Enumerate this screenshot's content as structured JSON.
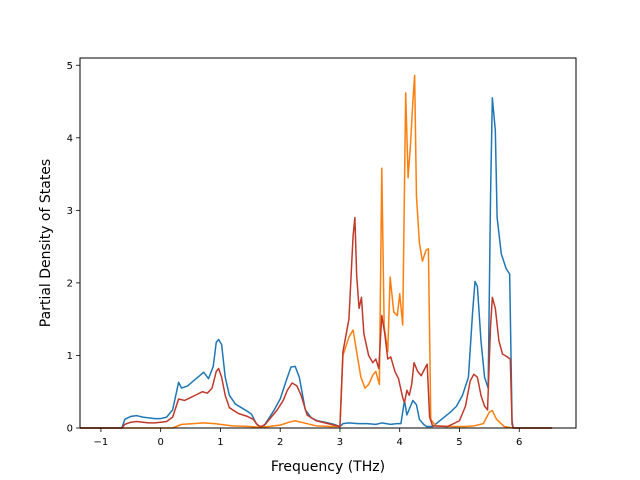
{
  "chart_data": {
    "type": "line",
    "title": "",
    "xlabel": "Frequency (THz)",
    "ylabel": "Partial Density of States",
    "xlim": [
      -1.35,
      6.95
    ],
    "ylim": [
      0,
      5.1
    ],
    "x_ticks": [
      -1,
      0,
      1,
      2,
      3,
      4,
      5,
      6
    ],
    "y_ticks": [
      0,
      1,
      2,
      3,
      4,
      5
    ],
    "grid": false,
    "legend": "none",
    "series": [
      {
        "color": "#1f77b4",
        "points": [
          [
            -1.35,
            0
          ],
          [
            -0.65,
            0
          ],
          [
            -0.6,
            0.12
          ],
          [
            -0.5,
            0.16
          ],
          [
            -0.4,
            0.17
          ],
          [
            -0.3,
            0.15
          ],
          [
            -0.2,
            0.14
          ],
          [
            -0.1,
            0.13
          ],
          [
            0,
            0.13
          ],
          [
            0.1,
            0.15
          ],
          [
            0.2,
            0.25
          ],
          [
            0.3,
            0.63
          ],
          [
            0.35,
            0.55
          ],
          [
            0.45,
            0.58
          ],
          [
            0.55,
            0.65
          ],
          [
            0.65,
            0.72
          ],
          [
            0.72,
            0.77
          ],
          [
            0.8,
            0.68
          ],
          [
            0.88,
            0.85
          ],
          [
            0.93,
            1.18
          ],
          [
            0.97,
            1.22
          ],
          [
            1.02,
            1.15
          ],
          [
            1.08,
            0.7
          ],
          [
            1.15,
            0.45
          ],
          [
            1.25,
            0.33
          ],
          [
            1.35,
            0.28
          ],
          [
            1.45,
            0.23
          ],
          [
            1.52,
            0.19
          ],
          [
            1.6,
            0.06
          ],
          [
            1.66,
            0.02
          ],
          [
            1.72,
            0.02
          ],
          [
            1.8,
            0.12
          ],
          [
            1.9,
            0.25
          ],
          [
            2.0,
            0.4
          ],
          [
            2.1,
            0.65
          ],
          [
            2.18,
            0.84
          ],
          [
            2.25,
            0.85
          ],
          [
            2.32,
            0.7
          ],
          [
            2.42,
            0.25
          ],
          [
            2.52,
            0.14
          ],
          [
            2.62,
            0.1
          ],
          [
            2.75,
            0.08
          ],
          [
            2.9,
            0.05
          ],
          [
            3.0,
            0.02
          ],
          [
            3.05,
            0.06
          ],
          [
            3.15,
            0.07
          ],
          [
            3.3,
            0.06
          ],
          [
            3.45,
            0.06
          ],
          [
            3.6,
            0.05
          ],
          [
            3.7,
            0.07
          ],
          [
            3.85,
            0.05
          ],
          [
            3.95,
            0.06
          ],
          [
            4.02,
            0.06
          ],
          [
            4.08,
            0.38
          ],
          [
            4.12,
            0.18
          ],
          [
            4.18,
            0.3
          ],
          [
            4.22,
            0.38
          ],
          [
            4.28,
            0.32
          ],
          [
            4.33,
            0.12
          ],
          [
            4.4,
            0.05
          ],
          [
            4.45,
            0.02
          ],
          [
            4.55,
            0.02
          ],
          [
            4.7,
            0.12
          ],
          [
            4.85,
            0.22
          ],
          [
            4.95,
            0.3
          ],
          [
            5.05,
            0.45
          ],
          [
            5.15,
            0.7
          ],
          [
            5.22,
            1.6
          ],
          [
            5.26,
            2.02
          ],
          [
            5.3,
            1.95
          ],
          [
            5.36,
            1.2
          ],
          [
            5.42,
            0.7
          ],
          [
            5.48,
            0.55
          ],
          [
            5.52,
            3.2
          ],
          [
            5.55,
            4.55
          ],
          [
            5.6,
            4.1
          ],
          [
            5.63,
            2.9
          ],
          [
            5.7,
            2.4
          ],
          [
            5.78,
            2.2
          ],
          [
            5.84,
            2.12
          ],
          [
            5.88,
            0.1
          ],
          [
            5.9,
            0
          ],
          [
            6.55,
            0
          ]
        ]
      },
      {
        "color": "#ff7f0e",
        "points": [
          [
            -1.35,
            0
          ],
          [
            0.2,
            0
          ],
          [
            0.35,
            0.05
          ],
          [
            0.55,
            0.06
          ],
          [
            0.7,
            0.07
          ],
          [
            0.9,
            0.06
          ],
          [
            1.0,
            0.05
          ],
          [
            1.2,
            0.03
          ],
          [
            1.5,
            0.02
          ],
          [
            1.65,
            0.01
          ],
          [
            1.8,
            0.02
          ],
          [
            2.0,
            0.04
          ],
          [
            2.15,
            0.08
          ],
          [
            2.25,
            0.1
          ],
          [
            2.4,
            0.07
          ],
          [
            2.6,
            0.03
          ],
          [
            2.85,
            0.02
          ],
          [
            3.0,
            0.02
          ],
          [
            3.05,
            1.0
          ],
          [
            3.15,
            1.25
          ],
          [
            3.22,
            1.35
          ],
          [
            3.28,
            1.05
          ],
          [
            3.35,
            0.7
          ],
          [
            3.42,
            0.55
          ],
          [
            3.48,
            0.6
          ],
          [
            3.55,
            0.73
          ],
          [
            3.6,
            0.78
          ],
          [
            3.66,
            0.6
          ],
          [
            3.7,
            3.58
          ],
          [
            3.74,
            1.4
          ],
          [
            3.8,
            1.05
          ],
          [
            3.84,
            2.08
          ],
          [
            3.9,
            1.6
          ],
          [
            3.96,
            1.55
          ],
          [
            4.0,
            1.85
          ],
          [
            4.05,
            1.42
          ],
          [
            4.1,
            4.62
          ],
          [
            4.14,
            3.45
          ],
          [
            4.18,
            3.9
          ],
          [
            4.22,
            4.5
          ],
          [
            4.25,
            4.86
          ],
          [
            4.28,
            3.2
          ],
          [
            4.33,
            2.55
          ],
          [
            4.38,
            2.3
          ],
          [
            4.44,
            2.45
          ],
          [
            4.48,
            2.47
          ],
          [
            4.52,
            0.12
          ],
          [
            4.6,
            0.03
          ],
          [
            4.9,
            0.02
          ],
          [
            5.1,
            0.02
          ],
          [
            5.25,
            0.03
          ],
          [
            5.4,
            0.06
          ],
          [
            5.5,
            0.22
          ],
          [
            5.55,
            0.24
          ],
          [
            5.62,
            0.12
          ],
          [
            5.75,
            0.02
          ],
          [
            5.9,
            0
          ],
          [
            6.55,
            0
          ]
        ]
      },
      {
        "color": "#c03a2b",
        "points": [
          [
            -1.35,
            0
          ],
          [
            -0.65,
            0
          ],
          [
            -0.6,
            0.05
          ],
          [
            -0.5,
            0.08
          ],
          [
            -0.4,
            0.09
          ],
          [
            -0.3,
            0.08
          ],
          [
            -0.2,
            0.07
          ],
          [
            -0.1,
            0.07
          ],
          [
            0,
            0.08
          ],
          [
            0.1,
            0.09
          ],
          [
            0.2,
            0.15
          ],
          [
            0.3,
            0.4
          ],
          [
            0.4,
            0.38
          ],
          [
            0.5,
            0.42
          ],
          [
            0.6,
            0.46
          ],
          [
            0.7,
            0.5
          ],
          [
            0.78,
            0.48
          ],
          [
            0.86,
            0.55
          ],
          [
            0.93,
            0.78
          ],
          [
            0.97,
            0.82
          ],
          [
            1.02,
            0.7
          ],
          [
            1.08,
            0.45
          ],
          [
            1.15,
            0.28
          ],
          [
            1.3,
            0.2
          ],
          [
            1.45,
            0.16
          ],
          [
            1.55,
            0.12
          ],
          [
            1.62,
            0.04
          ],
          [
            1.68,
            0.02
          ],
          [
            1.75,
            0.05
          ],
          [
            1.85,
            0.15
          ],
          [
            1.95,
            0.25
          ],
          [
            2.05,
            0.38
          ],
          [
            2.12,
            0.52
          ],
          [
            2.2,
            0.62
          ],
          [
            2.28,
            0.58
          ],
          [
            2.35,
            0.45
          ],
          [
            2.45,
            0.18
          ],
          [
            2.6,
            0.1
          ],
          [
            2.8,
            0.06
          ],
          [
            3.0,
            0.02
          ],
          [
            3.05,
            1.05
          ],
          [
            3.15,
            1.5
          ],
          [
            3.22,
            2.65
          ],
          [
            3.25,
            2.9
          ],
          [
            3.28,
            2.1
          ],
          [
            3.32,
            1.65
          ],
          [
            3.36,
            1.8
          ],
          [
            3.4,
            1.3
          ],
          [
            3.48,
            1.0
          ],
          [
            3.55,
            0.9
          ],
          [
            3.6,
            0.95
          ],
          [
            3.65,
            0.82
          ],
          [
            3.7,
            1.55
          ],
          [
            3.75,
            1.3
          ],
          [
            3.8,
            0.95
          ],
          [
            3.85,
            0.98
          ],
          [
            3.92,
            0.78
          ],
          [
            3.98,
            0.68
          ],
          [
            4.05,
            0.42
          ],
          [
            4.08,
            0.35
          ],
          [
            4.12,
            0.52
          ],
          [
            4.16,
            0.45
          ],
          [
            4.2,
            0.6
          ],
          [
            4.24,
            0.9
          ],
          [
            4.3,
            0.78
          ],
          [
            4.36,
            0.72
          ],
          [
            4.42,
            0.82
          ],
          [
            4.46,
            0.88
          ],
          [
            4.5,
            0.15
          ],
          [
            4.55,
            0.03
          ],
          [
            4.8,
            0.02
          ],
          [
            5.0,
            0.1
          ],
          [
            5.1,
            0.3
          ],
          [
            5.18,
            0.65
          ],
          [
            5.24,
            0.74
          ],
          [
            5.3,
            0.7
          ],
          [
            5.36,
            0.45
          ],
          [
            5.42,
            0.3
          ],
          [
            5.47,
            0.25
          ],
          [
            5.52,
            1.4
          ],
          [
            5.55,
            1.8
          ],
          [
            5.6,
            1.65
          ],
          [
            5.66,
            1.2
          ],
          [
            5.72,
            1.02
          ],
          [
            5.8,
            0.98
          ],
          [
            5.85,
            0.95
          ],
          [
            5.88,
            0.05
          ],
          [
            5.9,
            0
          ],
          [
            6.55,
            0
          ]
        ]
      }
    ]
  }
}
